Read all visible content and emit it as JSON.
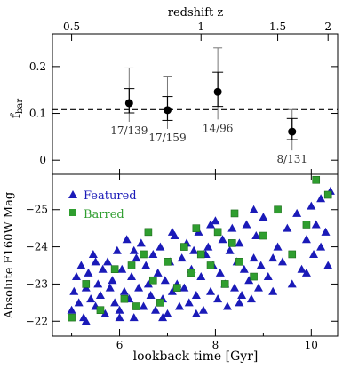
{
  "chart_data": [
    {
      "type": "scatter",
      "panel": "top",
      "ylabel": "f_bar",
      "ylabel_main": "f",
      "ylabel_sub": "bar",
      "top_axis_label": "redshift z",
      "top_axis_ticks": [
        "0.5",
        "1",
        "1.5",
        "2"
      ],
      "top_axis_tick_lookback": [
        5.0,
        7.7,
        9.3,
        10.35
      ],
      "ylim": [
        -0.03,
        0.27
      ],
      "yticks": [
        0,
        0.1,
        0.2
      ],
      "ytick_labels": [
        "0",
        "0.1",
        "0.2"
      ],
      "reference_line": 0.108,
      "points": [
        {
          "x": 6.2,
          "y": 0.122,
          "err_inner": [
            0.101,
            0.153
          ],
          "err_outer": [
            0.082,
            0.197
          ],
          "label": "17/139"
        },
        {
          "x": 7.0,
          "y": 0.107,
          "err_inner": [
            0.085,
            0.136
          ],
          "err_outer": [
            0.067,
            0.178
          ],
          "label": "17/159"
        },
        {
          "x": 8.05,
          "y": 0.146,
          "err_inner": [
            0.115,
            0.188
          ],
          "err_outer": [
            0.087,
            0.24
          ],
          "label": "14/96"
        },
        {
          "x": 9.6,
          "y": 0.061,
          "err_inner": [
            0.044,
            0.089
          ],
          "err_outer": [
            0.021,
            0.108
          ],
          "label": "8/131"
        }
      ]
    },
    {
      "type": "scatter",
      "panel": "bottom",
      "xlabel": "lookback time [Gyr]",
      "ylabel": "Absolute F160W Mag",
      "xlim": [
        4.6,
        10.55
      ],
      "xticks": [
        6,
        8,
        10
      ],
      "xtick_labels": [
        "6",
        "8",
        "10"
      ],
      "ylim": [
        -21.6,
        -25.95
      ],
      "yticks": [
        -22,
        -23,
        -24,
        -25
      ],
      "ytick_labels": [
        "−22",
        "−23",
        "−24",
        "−25"
      ],
      "series": [
        {
          "name": "Featured",
          "marker": "triangle",
          "color": "#1a1ab8",
          "points": [
            [
              5.0,
              -22.3
            ],
            [
              5.05,
              -22.8
            ],
            [
              5.1,
              -23.2
            ],
            [
              5.15,
              -22.5
            ],
            [
              5.2,
              -23.5
            ],
            [
              5.25,
              -22.1
            ],
            [
              5.3,
              -22.9
            ],
            [
              5.35,
              -23.3
            ],
            [
              5.4,
              -22.6
            ],
            [
              5.45,
              -23.8
            ],
            [
              5.5,
              -22.4
            ],
            [
              5.55,
              -23.0
            ],
            [
              5.6,
              -22.7
            ],
            [
              5.65,
              -23.4
            ],
            [
              5.7,
              -22.2
            ],
            [
              5.75,
              -23.6
            ],
            [
              5.8,
              -22.9
            ],
            [
              5.85,
              -23.1
            ],
            [
              5.9,
              -22.5
            ],
            [
              5.95,
              -23.9
            ],
            [
              6.0,
              -22.3
            ],
            [
              6.05,
              -23.4
            ],
            [
              6.1,
              -22.8
            ],
            [
              6.15,
              -24.2
            ],
            [
              6.2,
              -22.6
            ],
            [
              6.25,
              -23.2
            ],
            [
              6.3,
              -22.1
            ],
            [
              6.35,
              -23.7
            ],
            [
              6.4,
              -22.9
            ],
            [
              6.45,
              -24.1
            ],
            [
              6.5,
              -22.4
            ],
            [
              6.55,
              -23.5
            ],
            [
              6.6,
              -23.0
            ],
            [
              6.65,
              -22.7
            ],
            [
              6.7,
              -23.8
            ],
            [
              6.75,
              -22.3
            ],
            [
              6.8,
              -23.3
            ],
            [
              6.85,
              -24.0
            ],
            [
              6.9,
              -22.6
            ],
            [
              6.95,
              -23.1
            ],
            [
              7.0,
              -22.2
            ],
            [
              7.05,
              -23.6
            ],
            [
              7.1,
              -22.8
            ],
            [
              7.15,
              -24.3
            ],
            [
              7.2,
              -23.0
            ],
            [
              7.25,
              -22.4
            ],
            [
              7.3,
              -23.7
            ],
            [
              7.35,
              -22.9
            ],
            [
              7.4,
              -24.1
            ],
            [
              7.45,
              -22.5
            ],
            [
              7.5,
              -23.4
            ],
            [
              7.55,
              -23.9
            ],
            [
              7.6,
              -22.7
            ],
            [
              7.65,
              -24.4
            ],
            [
              7.7,
              -23.2
            ],
            [
              7.75,
              -22.3
            ],
            [
              7.8,
              -23.8
            ],
            [
              7.85,
              -24.0
            ],
            [
              7.9,
              -22.8
            ],
            [
              7.95,
              -23.5
            ],
            [
              8.0,
              -24.7
            ],
            [
              8.05,
              -22.6
            ],
            [
              8.1,
              -23.3
            ],
            [
              8.15,
              -24.2
            ],
            [
              8.2,
              -23.0
            ],
            [
              8.25,
              -22.4
            ],
            [
              8.3,
              -23.9
            ],
            [
              8.35,
              -24.5
            ],
            [
              8.4,
              -22.9
            ],
            [
              8.45,
              -23.6
            ],
            [
              8.5,
              -24.1
            ],
            [
              8.55,
              -22.7
            ],
            [
              8.6,
              -23.4
            ],
            [
              8.65,
              -24.6
            ],
            [
              8.7,
              -23.1
            ],
            [
              8.75,
              -22.6
            ],
            [
              8.8,
              -23.7
            ],
            [
              8.85,
              -24.3
            ],
            [
              8.9,
              -22.9
            ],
            [
              8.95,
              -23.5
            ],
            [
              9.0,
              -24.8
            ],
            [
              9.1,
              -23.2
            ],
            [
              9.2,
              -22.8
            ],
            [
              9.3,
              -24.0
            ],
            [
              9.4,
              -23.6
            ],
            [
              9.5,
              -24.5
            ],
            [
              9.6,
              -23.0
            ],
            [
              9.7,
              -24.9
            ],
            [
              9.8,
              -23.4
            ],
            [
              9.9,
              -24.2
            ],
            [
              10.0,
              -25.1
            ],
            [
              10.05,
              -23.8
            ],
            [
              10.1,
              -24.6
            ],
            [
              10.2,
              -25.3
            ],
            [
              10.3,
              -24.4
            ],
            [
              10.4,
              -25.5
            ],
            [
              5.3,
              -22.0
            ],
            [
              6.0,
              -22.1
            ],
            [
              6.9,
              -22.1
            ],
            [
              7.6,
              -22.2
            ],
            [
              8.5,
              -22.5
            ],
            [
              5.5,
              -23.6
            ],
            [
              6.3,
              -23.9
            ],
            [
              7.1,
              -24.4
            ],
            [
              7.9,
              -24.6
            ],
            [
              8.8,
              -25.0
            ],
            [
              9.2,
              -23.7
            ],
            [
              9.9,
              -23.3
            ],
            [
              10.2,
              -24.0
            ],
            [
              10.35,
              -23.5
            ]
          ]
        },
        {
          "name": "Barred",
          "marker": "square",
          "color": "#2f9e2f",
          "points": [
            [
              5.0,
              -22.1
            ],
            [
              5.3,
              -23.0
            ],
            [
              5.6,
              -22.3
            ],
            [
              5.9,
              -23.4
            ],
            [
              6.1,
              -22.6
            ],
            [
              6.25,
              -23.5
            ],
            [
              6.35,
              -22.4
            ],
            [
              6.5,
              -23.8
            ],
            [
              6.7,
              -23.1
            ],
            [
              6.85,
              -22.5
            ],
            [
              7.0,
              -23.6
            ],
            [
              7.2,
              -22.9
            ],
            [
              7.35,
              -24.0
            ],
            [
              7.5,
              -23.3
            ],
            [
              7.7,
              -23.8
            ],
            [
              7.9,
              -23.5
            ],
            [
              8.05,
              -24.4
            ],
            [
              8.2,
              -23.0
            ],
            [
              8.35,
              -24.1
            ],
            [
              8.5,
              -23.6
            ],
            [
              8.8,
              -23.2
            ],
            [
              9.0,
              -24.3
            ],
            [
              9.3,
              -25.0
            ],
            [
              9.6,
              -23.8
            ],
            [
              9.9,
              -24.6
            ],
            [
              10.1,
              -25.8
            ],
            [
              10.35,
              -25.4
            ],
            [
              8.4,
              -24.9
            ],
            [
              7.6,
              -24.5
            ],
            [
              6.6,
              -24.4
            ]
          ]
        }
      ]
    }
  ]
}
